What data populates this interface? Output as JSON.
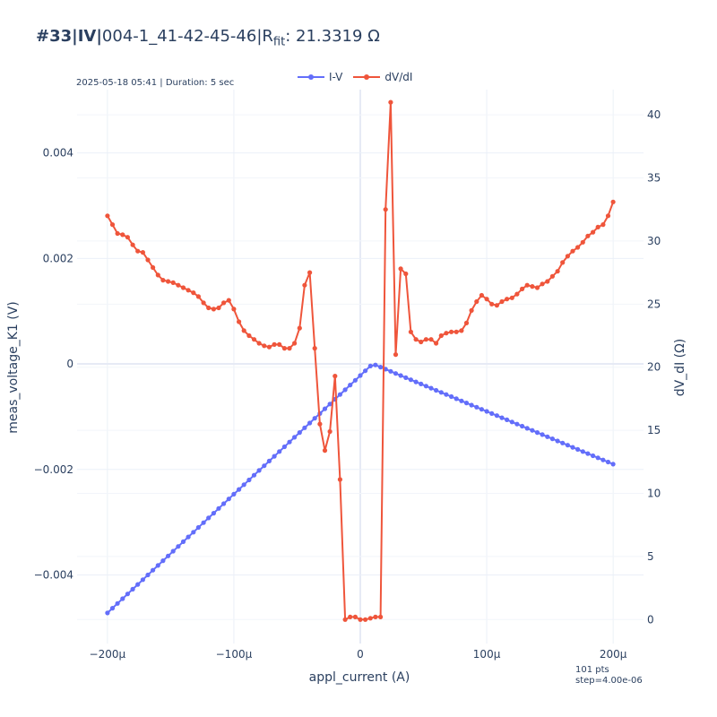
{
  "chart_data": {
    "type": "line",
    "title": {
      "tag": "#33|IV|",
      "sample": "004-1_41-42-45-46|R",
      "sub": "fit",
      "value": ": 21.3319 Ω"
    },
    "subtitle": "2025-05-18 05:41 | Duration: 5 sec",
    "note_lines": [
      "101 pts",
      "step=4.00e-06"
    ],
    "xlabel": "appl_current (A)",
    "ylabel": "meas_voltage_K1 (V)",
    "y2label": "dV_dI (Ω)",
    "xlim": [
      -0.000224,
      0.000224
    ],
    "ylim": [
      -0.0053,
      0.0052
    ],
    "y2lim": [
      -1.9,
      42.0
    ],
    "x_ticks": [
      {
        "value": -0.0002,
        "label": "−200μ"
      },
      {
        "value": -0.0001,
        "label": "−100μ"
      },
      {
        "value": 0,
        "label": "0"
      },
      {
        "value": 0.0001,
        "label": "100μ"
      },
      {
        "value": 0.0002,
        "label": "200μ"
      }
    ],
    "y_ticks": [
      {
        "value": -0.004,
        "label": "−0.004"
      },
      {
        "value": -0.002,
        "label": "−0.002"
      },
      {
        "value": 0,
        "label": "0"
      },
      {
        "value": 0.002,
        "label": "0.002"
      },
      {
        "value": 0.004,
        "label": "0.004"
      }
    ],
    "y2_ticks": [
      {
        "value": 0,
        "label": "0"
      },
      {
        "value": 5,
        "label": "5"
      },
      {
        "value": 10,
        "label": "10"
      },
      {
        "value": 15,
        "label": "15"
      },
      {
        "value": 20,
        "label": "20"
      },
      {
        "value": 25,
        "label": "25"
      },
      {
        "value": 30,
        "label": "30"
      },
      {
        "value": 35,
        "label": "35"
      },
      {
        "value": 40,
        "label": "40"
      }
    ],
    "grid": true,
    "legend_position": "top-center",
    "x": [
      -0.0002,
      -0.000196,
      -0.000192,
      -0.000188,
      -0.000184,
      -0.00018,
      -0.000176,
      -0.000172,
      -0.000168,
      -0.000164,
      -0.00016,
      -0.000156,
      -0.000152,
      -0.000148,
      -0.000144,
      -0.00014,
      -0.000136,
      -0.000132,
      -0.000128,
      -0.000124,
      -0.00012,
      -0.000116,
      -0.000112,
      -0.000108,
      -0.000104,
      -0.0001,
      -9.6e-05,
      -9.2e-05,
      -8.8e-05,
      -8.4e-05,
      -8e-05,
      -7.6e-05,
      -7.2e-05,
      -6.8e-05,
      -6.4e-05,
      -6e-05,
      -5.6e-05,
      -5.2e-05,
      -4.8e-05,
      -4.4e-05,
      -4e-05,
      -3.6e-05,
      -3.2e-05,
      -2.8e-05,
      -2.4e-05,
      -2e-05,
      -1.6e-05,
      -1.2e-05,
      -8e-06,
      -4e-06,
      0,
      4e-06,
      8e-06,
      1.2e-05,
      1.6e-05,
      2e-05,
      2.4e-05,
      2.8e-05,
      3.2e-05,
      3.6e-05,
      4e-05,
      4.4e-05,
      4.8e-05,
      5.2e-05,
      5.6e-05,
      6e-05,
      6.4e-05,
      6.8e-05,
      7.2e-05,
      7.6e-05,
      8e-05,
      8.4e-05,
      8.8e-05,
      9.2e-05,
      9.6e-05,
      0.0001,
      0.000104,
      0.000108,
      0.000112,
      0.000116,
      0.00012,
      0.000124,
      0.000128,
      0.000132,
      0.000136,
      0.00014,
      0.000144,
      0.000148,
      0.000152,
      0.000156,
      0.00016,
      0.000164,
      0.000168,
      0.000172,
      0.000176,
      0.00018,
      0.000184,
      0.000188,
      0.000192,
      0.000196,
      0.0002
    ],
    "series": [
      {
        "name": "I-V",
        "color": "#636efa",
        "axis": "y",
        "values": [
          -0.00472,
          -0.00463,
          -0.00454,
          -0.00445,
          -0.00436,
          -0.00427,
          -0.00418,
          -0.00409,
          -0.004,
          -0.00391,
          -0.00382,
          -0.00373,
          -0.00364,
          -0.00355,
          -0.00346,
          -0.00337,
          -0.00328,
          -0.00319,
          -0.0031,
          -0.00301,
          -0.00292,
          -0.00283,
          -0.00274,
          -0.00265,
          -0.00256,
          -0.00247,
          -0.00238,
          -0.00229,
          -0.0022,
          -0.00211,
          -0.00202,
          -0.00193,
          -0.00184,
          -0.00175,
          -0.00166,
          -0.00157,
          -0.00148,
          -0.00139,
          -0.0013,
          -0.00121,
          -0.00112,
          -0.00103,
          -0.00094,
          -0.00085,
          -0.00076,
          -0.00067,
          -0.00058,
          -0.00049,
          -0.0004,
          -0.00031,
          -0.00022,
          -0.00013,
          -4e-05,
          -2e-05,
          -6e-05,
          -0.0001,
          -0.00014,
          -0.00018,
          -0.00022,
          -0.00026,
          -0.0003,
          -0.00034,
          -0.00038,
          -0.00042,
          -0.00046,
          -0.0005,
          -0.00054,
          -0.00058,
          -0.00062,
          -0.00066,
          -0.0007,
          -0.00074,
          -0.00078,
          -0.00082,
          -0.00086,
          -0.0009,
          -0.00094,
          -0.00098,
          -0.00102,
          -0.00106,
          -0.0011,
          -0.00114,
          -0.00118,
          -0.00122,
          -0.00126,
          -0.0013,
          -0.00134,
          -0.00138,
          -0.00142,
          -0.00146,
          -0.0015,
          -0.00154,
          -0.00158,
          -0.00162,
          -0.00166,
          -0.0017,
          -0.00174,
          -0.00178,
          -0.00182,
          -0.00186,
          -0.0019
        ]
      },
      {
        "name": "dV/dI",
        "color": "#ef553b",
        "axis": "y2",
        "values": [
          32.0,
          31.3,
          30.6,
          30.5,
          30.3,
          29.7,
          29.2,
          29.1,
          28.5,
          27.9,
          27.3,
          26.9,
          26.8,
          26.7,
          26.5,
          26.3,
          26.1,
          25.9,
          25.6,
          25.1,
          24.7,
          24.6,
          24.7,
          25.1,
          25.3,
          24.6,
          23.6,
          22.9,
          22.5,
          22.2,
          21.9,
          21.7,
          21.6,
          21.8,
          21.8,
          21.5,
          21.5,
          21.9,
          23.1,
          26.5,
          27.5,
          21.5,
          15.5,
          13.4,
          14.9,
          19.3,
          11.1,
          0.0,
          0.2,
          0.2,
          0.0,
          0.0,
          0.1,
          0.2,
          0.2,
          32.5,
          41.0,
          21.0,
          27.8,
          27.4,
          22.8,
          22.2,
          22.0,
          22.2,
          22.2,
          21.9,
          22.5,
          22.7,
          22.8,
          22.8,
          22.9,
          23.5,
          24.5,
          25.2,
          25.7,
          25.4,
          25.0,
          24.9,
          25.2,
          25.4,
          25.5,
          25.8,
          26.2,
          26.5,
          26.4,
          26.3,
          26.6,
          26.8,
          27.2,
          27.6,
          28.3,
          28.8,
          29.2,
          29.5,
          29.9,
          30.4,
          30.7,
          31.1,
          31.3,
          32.0,
          33.1
        ]
      }
    ]
  }
}
